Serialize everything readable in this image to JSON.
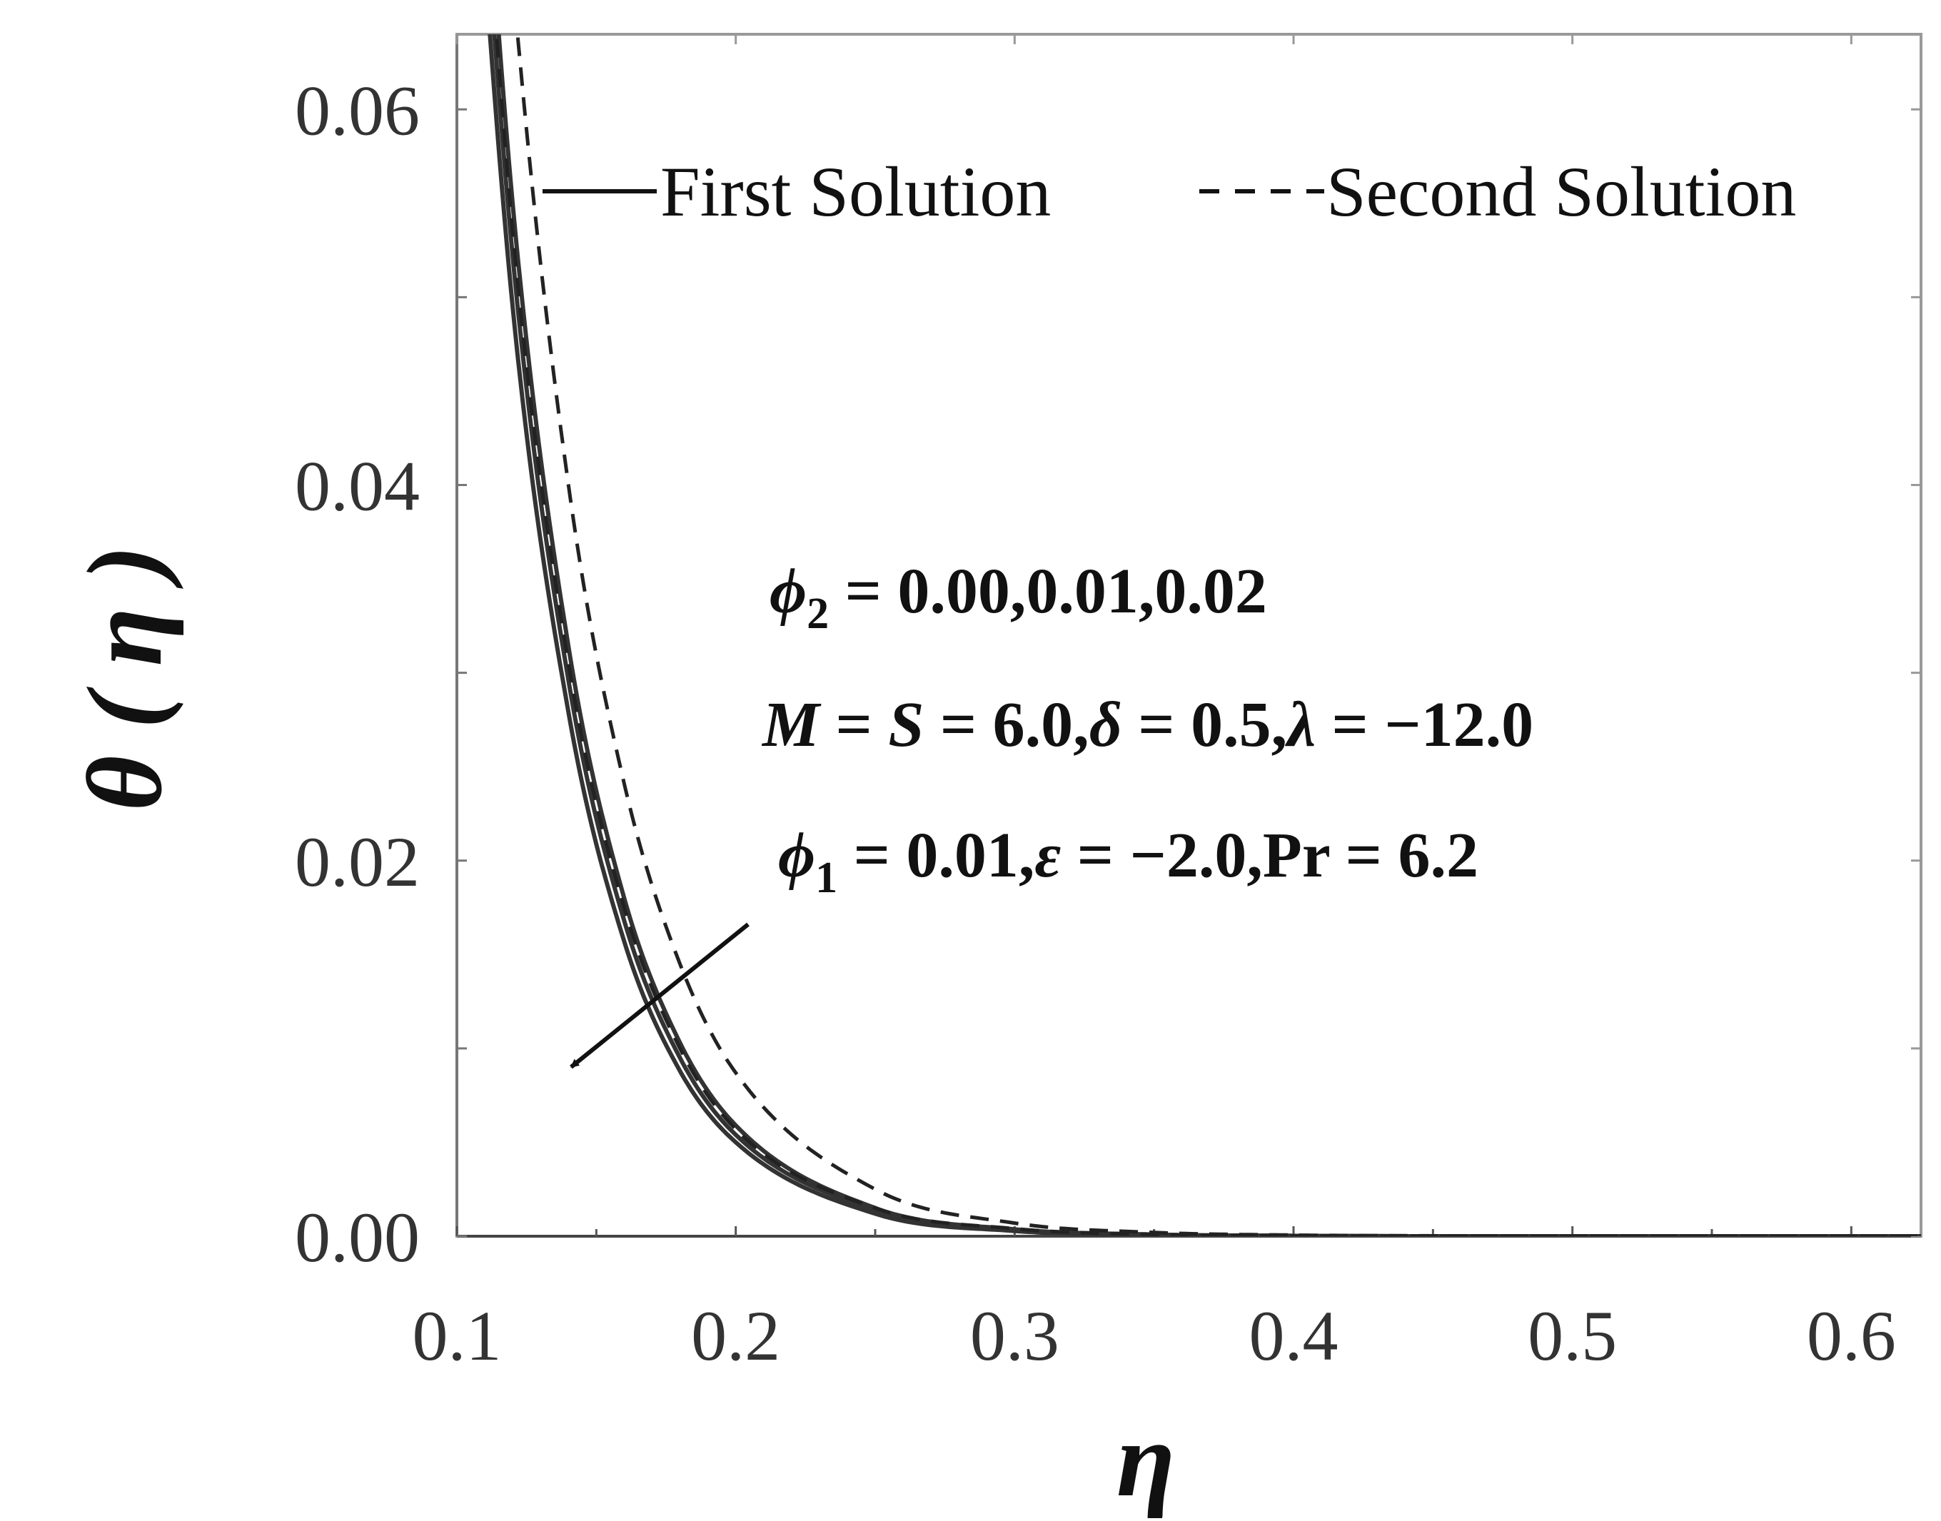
{
  "chart_data": {
    "type": "line",
    "title": "",
    "xlabel": "η",
    "ylabel": "θ ( η )",
    "xlim": [
      0.1,
      0.625
    ],
    "ylim": [
      0,
      0.064
    ],
    "x_ticks": [
      "0.1",
      "0.2",
      "0.3",
      "0.4",
      "0.5",
      "0.6"
    ],
    "y_ticks": [
      "0.00",
      "0.02",
      "0.04",
      "0.06"
    ],
    "grid": false,
    "legend_position": "top",
    "legend": [
      {
        "label": "First Solution",
        "style": "solid"
      },
      {
        "label": "Second Solution",
        "style": "dashed"
      }
    ],
    "annotations": {
      "line1_prefix": "ϕ",
      "line1_sub": "2",
      "line1_rest": " = 0.00,0.01,0.02",
      "line2_M": "M",
      "line2_a": " = ",
      "line2_S": "S",
      "line2_b": " = 6.0,",
      "line2_delta": "δ",
      "line2_c": " = 0.5,",
      "line2_lambda": "λ",
      "line2_d": " = −12.0",
      "line3_prefix": "ϕ",
      "line3_sub": "1",
      "line3_b": " = 0.01,",
      "line3_eps": "ε",
      "line3_c": " = −2.0,Pr = 6.2"
    },
    "series": [
      {
        "style": "solid",
        "x": [
          0.1,
          0.12,
          0.14,
          0.16,
          0.18,
          0.2,
          0.25,
          0.3,
          0.35,
          0.4,
          0.45,
          0.5,
          0.55,
          0.6,
          0.625
        ],
        "y": [
          0.088,
          0.0495,
          0.0279,
          0.0157,
          0.0088,
          0.005,
          0.0012,
          0.00028,
          7e-05,
          2e-05,
          0.0,
          0.0,
          0.0,
          0.0,
          0.0
        ]
      },
      {
        "style": "solid",
        "x": [
          0.1,
          0.12,
          0.14,
          0.16,
          0.18,
          0.2,
          0.25,
          0.3,
          0.35,
          0.4,
          0.45,
          0.5,
          0.55,
          0.6,
          0.625
        ],
        "y": [
          0.092,
          0.0522,
          0.0296,
          0.0168,
          0.0095,
          0.0054,
          0.0014,
          0.00032,
          8e-05,
          2e-05,
          0.0,
          0.0,
          0.0,
          0.0,
          0.0
        ]
      },
      {
        "style": "solid",
        "x": [
          0.1,
          0.12,
          0.14,
          0.16,
          0.18,
          0.2,
          0.25,
          0.3,
          0.35,
          0.4,
          0.45,
          0.5,
          0.55,
          0.6,
          0.625
        ],
        "y": [
          0.096,
          0.055,
          0.0314,
          0.018,
          0.0103,
          0.0059,
          0.0015,
          0.00037,
          9e-05,
          2e-05,
          0.0,
          0.0,
          0.0,
          0.0,
          0.0
        ]
      },
      {
        "style": "dashed",
        "x": [
          0.1,
          0.12,
          0.14,
          0.16,
          0.18,
          0.2,
          0.25,
          0.3,
          0.35,
          0.4,
          0.45,
          0.5,
          0.55,
          0.6,
          0.625
        ],
        "y": [
          0.094,
          0.0535,
          0.0305,
          0.0175,
          0.01,
          0.0057,
          0.0015,
          0.0004,
          0.0001,
          3e-05,
          0.0,
          0.0,
          0.0,
          0.0,
          0.0
        ]
      },
      {
        "style": "dashed",
        "x": [
          0.1,
          0.12,
          0.14,
          0.16,
          0.18,
          0.2,
          0.25,
          0.3,
          0.35,
          0.4,
          0.45,
          0.5,
          0.55,
          0.6,
          0.625
        ],
        "y": [
          0.11,
          0.067,
          0.04,
          0.0241,
          0.0145,
          0.0087,
          0.0025,
          0.0007,
          0.0002,
          6e-05,
          2e-05,
          0.0,
          0.0,
          0.0,
          0.0
        ]
      }
    ]
  }
}
